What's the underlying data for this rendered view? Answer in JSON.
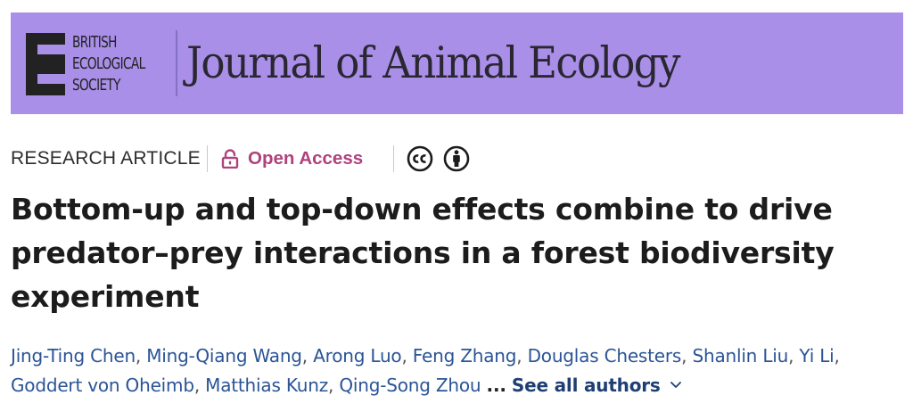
{
  "header": {
    "society_name_lines": [
      "BRITISH",
      "ECOLOGICAL",
      "SOCIETY"
    ],
    "journal_title": "Journal of Animal Ecology",
    "banner_color": "#a98fe8"
  },
  "meta": {
    "article_type": "RESEARCH ARTICLE",
    "access_label": "Open Access",
    "access_color": "#b0427d",
    "license_icons": [
      "creative-commons-icon",
      "attribution-icon"
    ]
  },
  "article": {
    "title": "Bottom-up and top-down effects combine to drive predator–prey interactions in a forest biodiversity experiment"
  },
  "authors": {
    "list": [
      "Jing-Ting Chen",
      "Ming-Qiang Wang",
      "Arong Luo",
      "Feng Zhang",
      "Douglas Chesters",
      "Shanlin Liu",
      "Yi Li",
      "Goddert von Oheimb",
      "Matthias Kunz",
      "Qing-Song Zhou"
    ],
    "ellipsis": "...",
    "see_all_label": "See all authors",
    "link_color": "#2a5496"
  }
}
